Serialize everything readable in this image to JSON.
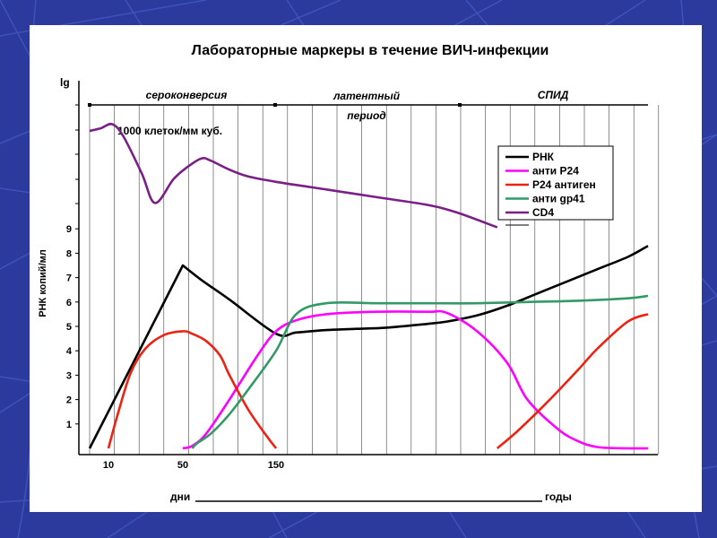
{
  "background": {
    "primary": "#2b3a9c",
    "line": "#3e52bc"
  },
  "chart_data": {
    "type": "line",
    "title": "Лабораторные маркеры в течение ВИЧ-инфекции",
    "ylabel": "РНК копий/мл",
    "ylabel_log": "lg",
    "xlabel_left": "дни",
    "xlabel_right": "годы",
    "yticks": [
      "1",
      "2",
      "3",
      "4",
      "5",
      "6",
      "7",
      "8",
      "9"
    ],
    "xticks": [
      {
        "label": "10",
        "x": 10
      },
      {
        "label": "50",
        "x": 50
      },
      {
        "label": "150",
        "x": 150
      }
    ],
    "phases": [
      {
        "label": "сероконверсия",
        "style": "italic"
      },
      {
        "label": "латентный",
        "style": "italic"
      },
      {
        "label": "период",
        "style": "italic"
      },
      {
        "label": "СПИД",
        "style": "italic"
      }
    ],
    "annotation": "1000 клеток/мм куб.",
    "grid": "vertical",
    "legend_position": "right",
    "series": [
      {
        "name": "РНК",
        "color": "#000000",
        "x": [
          0,
          50,
          70,
          100,
          150,
          170,
          200,
          230,
          260,
          300,
          320,
          350,
          380,
          410,
          440,
          470,
          500,
          520
        ],
        "y": [
          0,
          7.5,
          6.9,
          6.1,
          4.7,
          4.75,
          4.85,
          4.9,
          4.95,
          5.1,
          5.2,
          5.45,
          5.85,
          6.35,
          6.85,
          7.35,
          7.85,
          8.3
        ]
      },
      {
        "name": "анти P24",
        "color": "#ff00ff",
        "x": [
          50,
          60,
          75,
          100,
          130,
          150,
          170,
          200,
          250,
          300,
          320,
          350,
          380,
          400,
          430,
          450,
          470,
          500,
          520
        ],
        "y": [
          0,
          0.1,
          0.6,
          2.0,
          3.8,
          4.8,
          5.25,
          5.5,
          5.6,
          5.6,
          5.55,
          4.8,
          3.5,
          2.0,
          0.8,
          0.3,
          0.05,
          0,
          0
        ]
      },
      {
        "name": "P24 антиген",
        "color": "#ee2211",
        "x": [
          10,
          15,
          22,
          30,
          40,
          50,
          60,
          75,
          90,
          100,
          120,
          140,
          150,
          370,
          390,
          420,
          450,
          470,
          500,
          520
        ],
        "y": [
          0,
          1.4,
          3.1,
          4.1,
          4.65,
          4.8,
          4.7,
          4.4,
          3.8,
          3.0,
          1.6,
          0.5,
          0,
          0,
          0.7,
          1.9,
          3.2,
          4.1,
          5.2,
          5.5
        ]
      },
      {
        "name": "анти gp41",
        "color": "#339966",
        "x": [
          60,
          65,
          80,
          100,
          120,
          150,
          170,
          200,
          250,
          300,
          350,
          400,
          450,
          500,
          520
        ],
        "y": [
          0,
          0.2,
          0.6,
          1.4,
          2.4,
          4.0,
          5.5,
          5.95,
          5.95,
          5.95,
          5.95,
          6.0,
          6.05,
          6.15,
          6.25
        ]
      },
      {
        "name": "CD4",
        "color": "#7a1f86",
        "x": [
          0,
          6,
          12,
          18,
          28,
          35,
          45,
          55,
          70,
          80,
          100,
          120,
          150,
          200,
          250,
          300,
          330,
          370
        ],
        "y": [
          1000,
          1006,
          1015,
          988,
          905,
          840,
          893,
          920,
          939,
          934,
          914,
          899,
          887,
          870,
          853,
          836,
          819,
          786
        ]
      }
    ]
  }
}
